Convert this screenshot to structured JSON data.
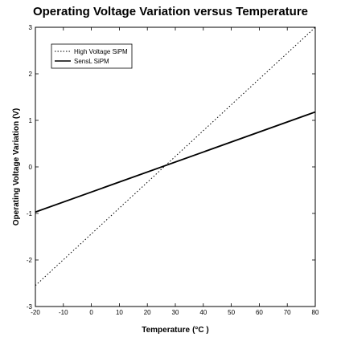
{
  "chart_data": {
    "type": "line",
    "title": "Operating Voltage Variation versus Temperature",
    "xlabel": "Temperature",
    "xlabel_unit": "(°C )",
    "ylabel": "Operating Voltage Variation (V)",
    "xlim": [
      -20,
      80
    ],
    "ylim": [
      -3,
      3
    ],
    "x_ticks": [
      -20,
      -10,
      0,
      10,
      20,
      30,
      40,
      50,
      60,
      70,
      80
    ],
    "y_ticks": [
      -3,
      -2,
      -1,
      0,
      1,
      2,
      3
    ],
    "grid": false,
    "legend_position": "top-left",
    "series": [
      {
        "name": "High Voltage SiPM",
        "style": "dotted",
        "color": "#000000",
        "x": [
          -20,
          80
        ],
        "y": [
          -2.55,
          3.0
        ]
      },
      {
        "name": "SensL SiPM",
        "style": "solid",
        "color": "#000000",
        "x": [
          -20,
          80
        ],
        "y": [
          -0.97,
          1.18
        ]
      }
    ]
  }
}
